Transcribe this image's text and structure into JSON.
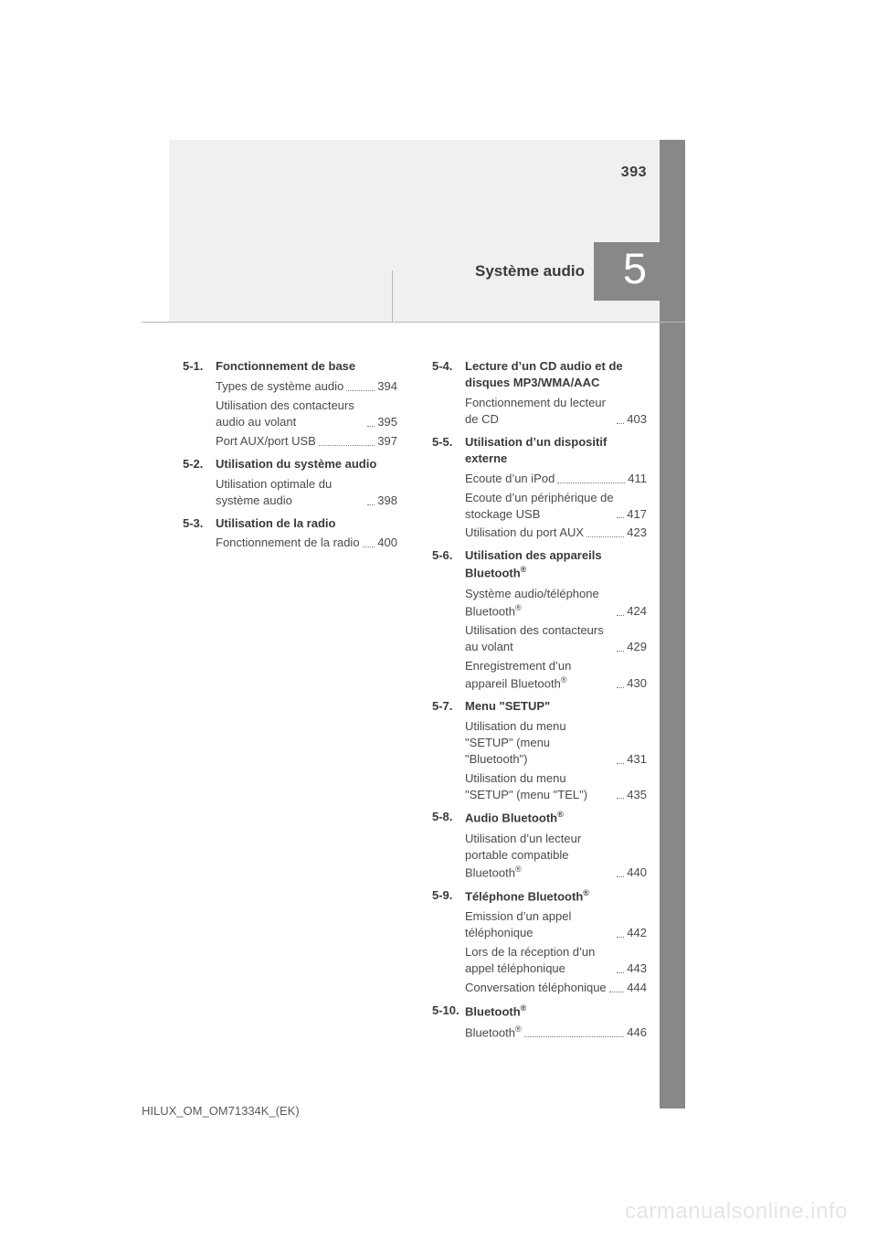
{
  "page_number": "393",
  "chapter_number": "5",
  "chapter_title": "Système audio",
  "footer_code": "HILUX_OM_OM71334K_(EK)",
  "watermark": "carmanualsonline.info",
  "colors": {
    "tab_bg": "#888888",
    "light_bg": "#f0f0f0",
    "text": "#4a4a4a",
    "strong": "#3a3a3a",
    "watermark": "#e5e5e5"
  },
  "left_sections": [
    {
      "num": "5-1.",
      "title": "Fonctionnement de base",
      "entries": [
        {
          "label": "Types de système audio",
          "page": "394"
        },
        {
          "label": "Utilisation des contacteurs audio au volant",
          "page": "395"
        },
        {
          "label": "Port AUX/port USB",
          "page": "397"
        }
      ]
    },
    {
      "num": "5-2.",
      "title": "Utilisation du système audio",
      "entries": [
        {
          "label": "Utilisation optimale du système audio",
          "page": "398"
        }
      ]
    },
    {
      "num": "5-3.",
      "title": "Utilisation de la radio",
      "entries": [
        {
          "label": "Fonctionnement de la radio",
          "page": "400"
        }
      ]
    }
  ],
  "right_sections": [
    {
      "num": "5-4.",
      "title": "Lecture d’un CD audio et de disques MP3/WMA/AAC",
      "entries": [
        {
          "label": "Fonctionnement du lecteur de CD",
          "page": "403"
        }
      ]
    },
    {
      "num": "5-5.",
      "title": "Utilisation d’un dispositif externe",
      "entries": [
        {
          "label": "Ecoute d’un iPod",
          "page": "411"
        },
        {
          "label": "Ecoute d’un périphérique de stockage USB",
          "page": "417"
        },
        {
          "label": "Utilisation du port AUX",
          "page": "423"
        }
      ]
    },
    {
      "num": "5-6.",
      "title": "Utilisation des appareils Bluetooth<sup>®</sup>",
      "entries": [
        {
          "label": "Système audio/téléphone Bluetooth<sup>®</sup>",
          "page": "424"
        },
        {
          "label": "Utilisation des contacteurs au volant",
          "page": "429"
        },
        {
          "label": "Enregistrement d’un appareil Bluetooth<sup>®</sup>",
          "page": "430"
        }
      ]
    },
    {
      "num": "5-7.",
      "title": "Menu \"SETUP\"",
      "entries": [
        {
          "label": "Utilisation du menu \"SETUP\" (menu \"Bluetooth\")",
          "page": "431"
        },
        {
          "label": "Utilisation du menu \"SETUP\" (menu \"TEL\")",
          "page": "435"
        }
      ]
    },
    {
      "num": "5-8.",
      "title": "Audio Bluetooth<sup>®</sup>",
      "entries": [
        {
          "label": "Utilisation d’un lecteur portable compatible Bluetooth<sup>®</sup>",
          "page": "440"
        }
      ]
    },
    {
      "num": "5-9.",
      "title": "Téléphone Bluetooth<sup>®</sup>",
      "entries": [
        {
          "label": "Emission d’un appel téléphonique",
          "page": "442"
        },
        {
          "label": "Lors de la réception d’un appel téléphonique",
          "page": "443"
        },
        {
          "label": "Conversation téléphonique",
          "page": "444"
        }
      ]
    },
    {
      "num": "5-10.",
      "title": "Bluetooth<sup>®</sup>",
      "entries": [
        {
          "label": "Bluetooth<sup>®</sup>",
          "page": "446"
        }
      ]
    }
  ]
}
